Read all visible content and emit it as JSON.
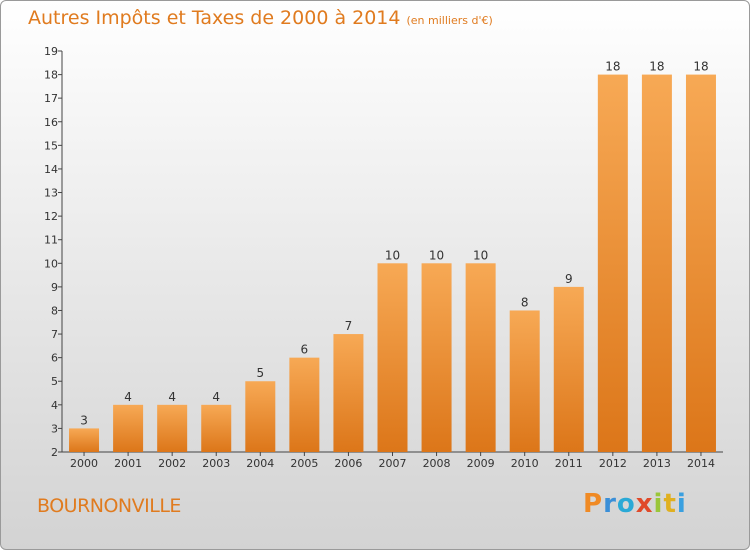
{
  "header": {
    "title": "Autres Impôts et Taxes de 2000 à 2014",
    "subtitle": "(en milliers d'€)"
  },
  "footer": {
    "place": "BOURNONVILLE",
    "logo_letters": [
      "P",
      "r",
      "o",
      "x",
      "i",
      "t",
      "i"
    ],
    "logo_colors": [
      "#f08a24",
      "#3a8fd8",
      "#2aa9d6",
      "#e04a2a",
      "#9ac63a",
      "#e0b020",
      "#3aa0e0"
    ]
  },
  "colors": {
    "bar_light": "#f7a955",
    "bar_dark": "#dc7619",
    "accent": "#e07b1f"
  },
  "chart_data": {
    "type": "bar",
    "title": "Autres Impôts et Taxes de 2000 à 2014",
    "xlabel": "",
    "ylabel": "",
    "categories": [
      "2000",
      "2001",
      "2002",
      "2003",
      "2004",
      "2005",
      "2006",
      "2007",
      "2008",
      "2009",
      "2010",
      "2011",
      "2012",
      "2013",
      "2014"
    ],
    "values": [
      3,
      4,
      4,
      4,
      5,
      6,
      7,
      10,
      10,
      10,
      8,
      9,
      18,
      18,
      18
    ],
    "ylim": [
      2,
      19
    ],
    "yticks": [
      2,
      3,
      4,
      5,
      6,
      7,
      8,
      9,
      10,
      11,
      12,
      13,
      14,
      15,
      16,
      17,
      18,
      19
    ],
    "grid": false,
    "legend": "none"
  }
}
